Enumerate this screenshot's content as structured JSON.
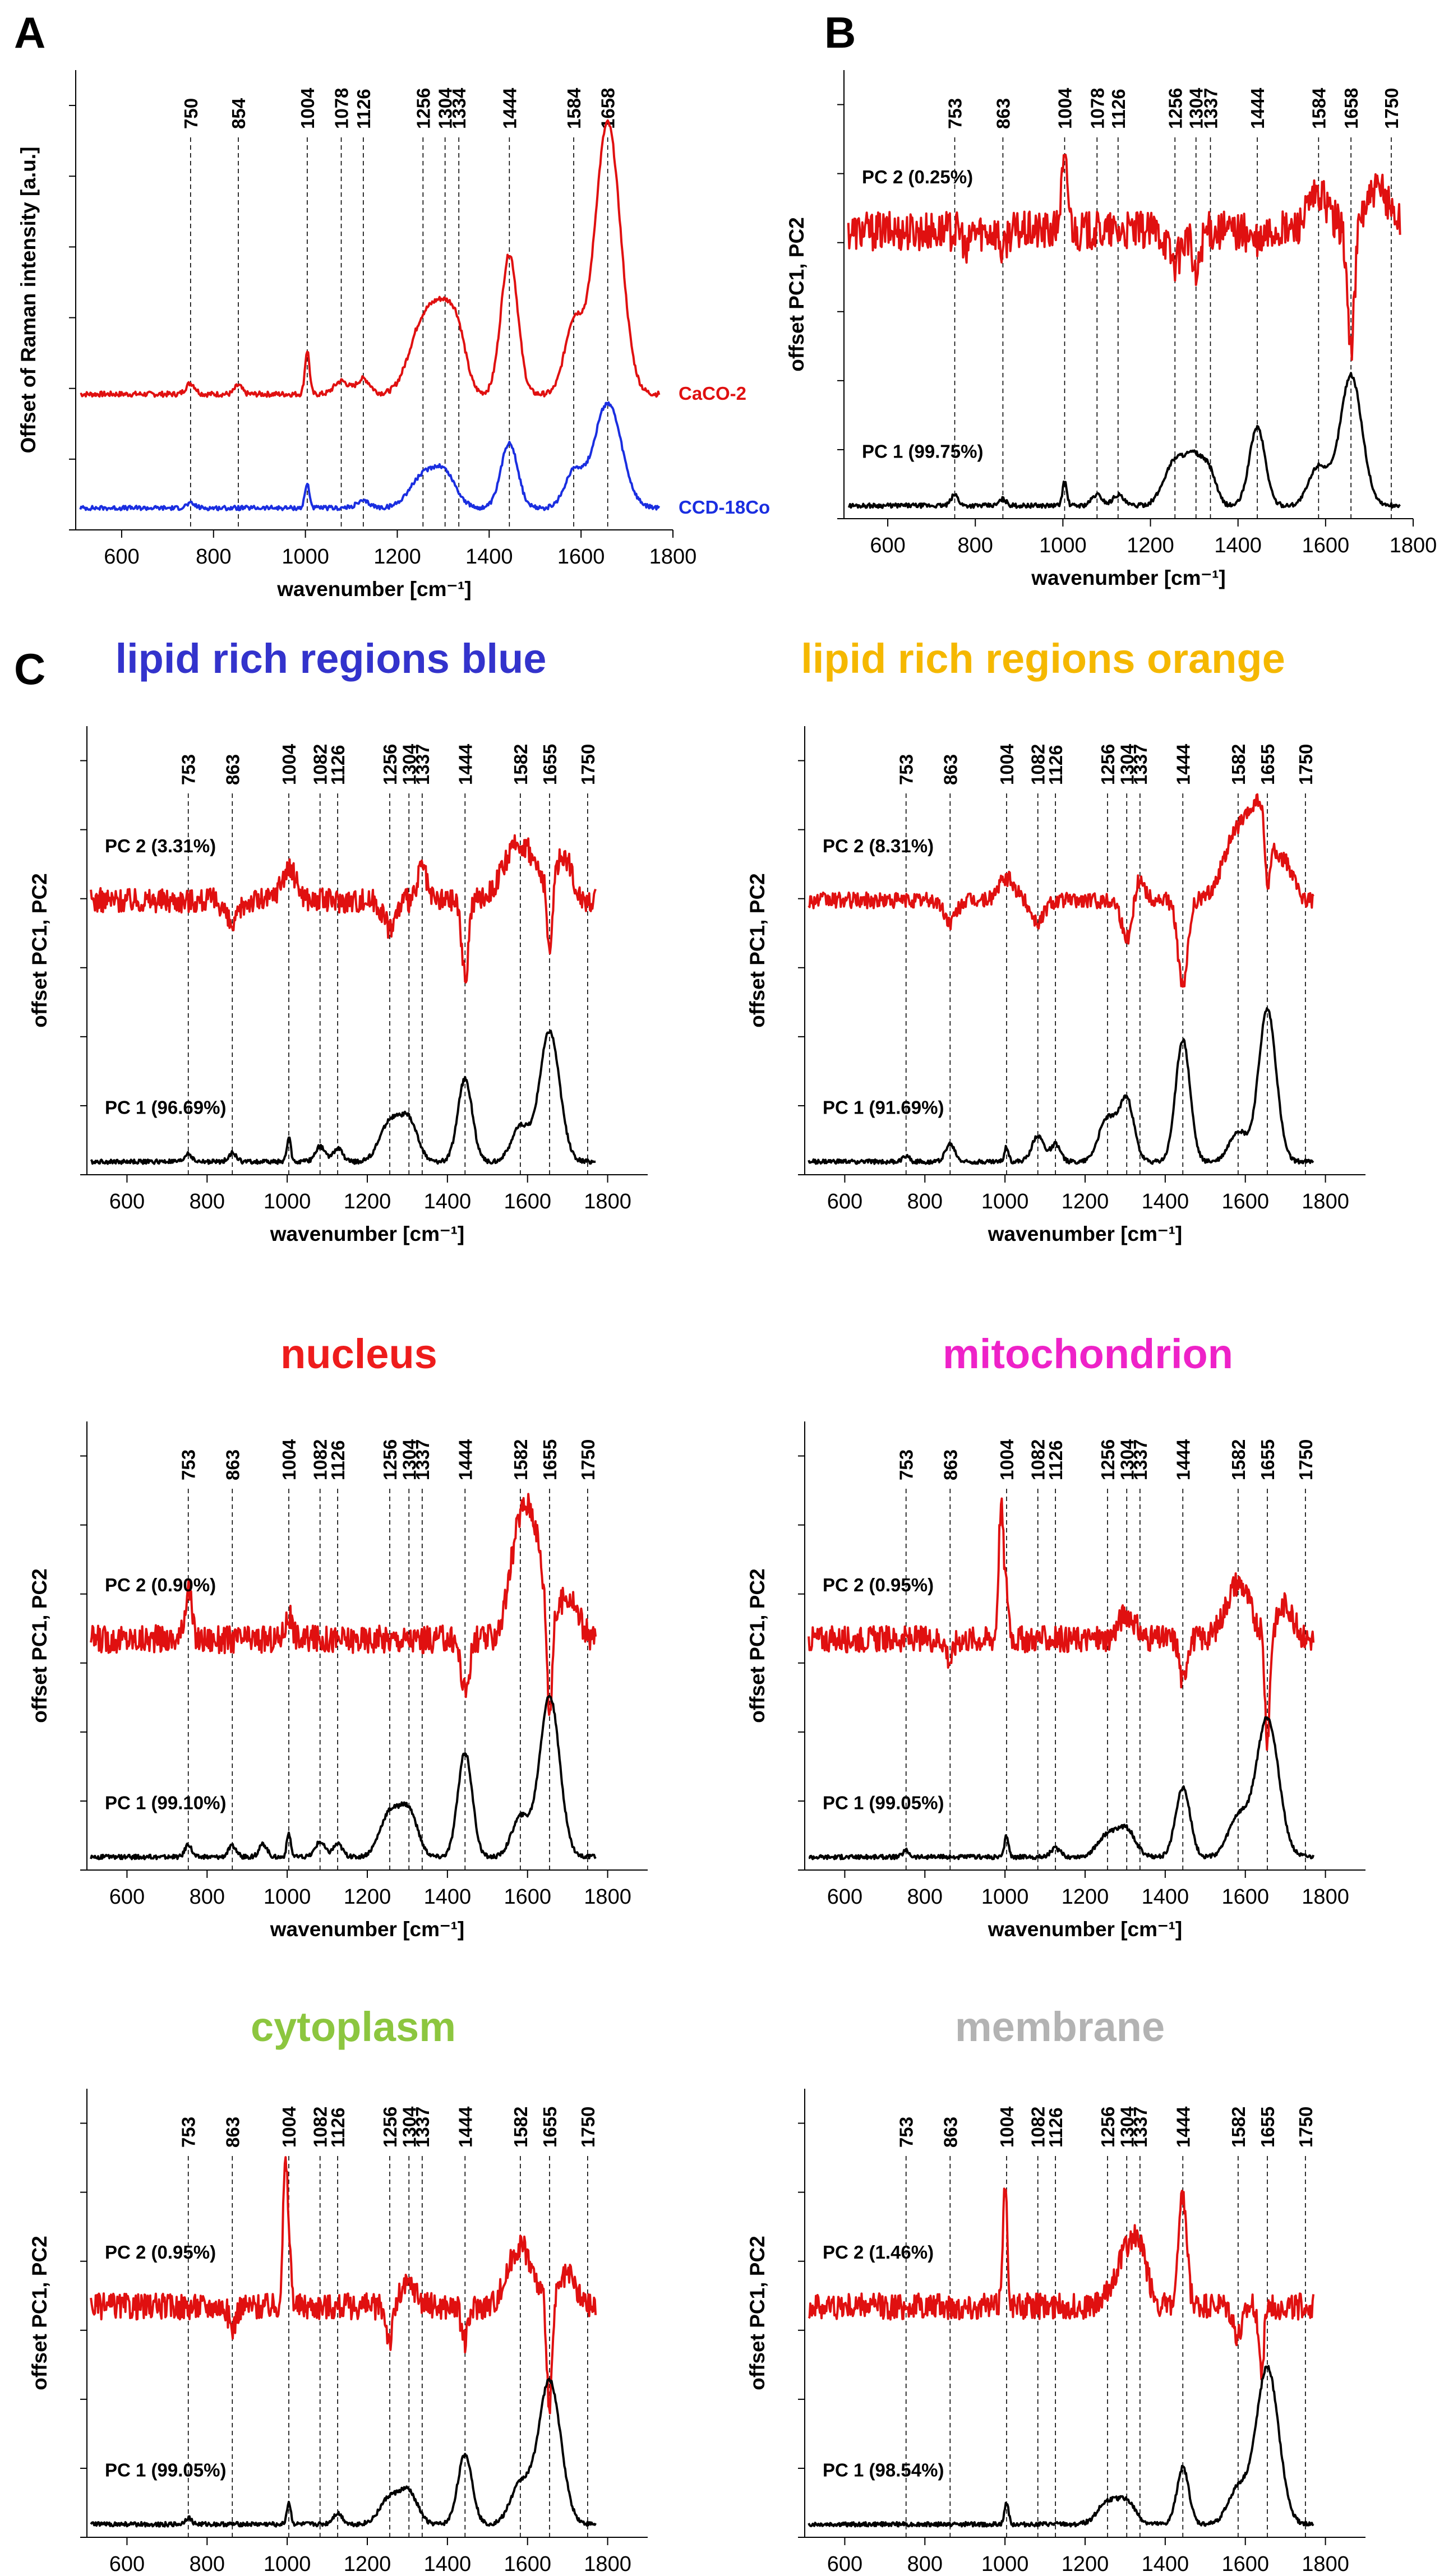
{
  "chart_data": [
    {
      "type": "line",
      "panel": "A",
      "title": "",
      "xlabel": "wavenumber [cm⁻¹]",
      "ylabel": "Offset of Raman intensity [a.u.]",
      "xlim": [
        500,
        1800
      ],
      "ylim": [
        -0.5,
        10
      ],
      "xticks": [
        600,
        800,
        1000,
        1200,
        1400,
        1600,
        1800
      ],
      "peak_lines": [
        "750",
        "854",
        "1004",
        "1078",
        "1126",
        "1256",
        "1304",
        "1334",
        "1444",
        "1584",
        "1658"
      ],
      "series": [
        {
          "name": "CaCO-2",
          "color": "#e01010",
          "offset": 2.6,
          "noise": 0.06,
          "peaks": [
            [
              750,
              0.25,
              10
            ],
            [
              854,
              0.2,
              8
            ],
            [
              1004,
              1.0,
              5
            ],
            [
              1078,
              0.3,
              15
            ],
            [
              1126,
              0.35,
              15
            ],
            [
              1256,
              1.6,
              30
            ],
            [
              1304,
              1.5,
              25
            ],
            [
              1334,
              0.9,
              18
            ],
            [
              1444,
              3.2,
              18
            ],
            [
              1584,
              1.6,
              20
            ],
            [
              1658,
              6.2,
              28
            ]
          ]
        },
        {
          "name": "CCD-18Co",
          "color": "#1a2ee0",
          "offset": 0,
          "noise": 0.05,
          "peaks": [
            [
              750,
              0.1,
              10
            ],
            [
              1004,
              0.55,
              5
            ],
            [
              1126,
              0.15,
              15
            ],
            [
              1256,
              0.7,
              30
            ],
            [
              1304,
              0.7,
              25
            ],
            [
              1444,
              1.5,
              18
            ],
            [
              1584,
              0.8,
              20
            ],
            [
              1658,
              2.4,
              30
            ]
          ]
        }
      ]
    },
    {
      "type": "line",
      "panel": "B",
      "title": "",
      "xlabel": "wavenumber [cm⁻¹]",
      "ylabel": "offset PC1, PC2",
      "xlim": [
        500,
        1800
      ],
      "ylim": [
        -0.3,
        10
      ],
      "xticks": [
        600,
        800,
        1000,
        1200,
        1400,
        1600,
        1800
      ],
      "peak_lines": [
        "753",
        "863",
        "1004",
        "1078",
        "1126",
        "1256",
        "1304",
        "1337",
        "1444",
        "1584",
        "1658",
        "1750"
      ],
      "series": [
        {
          "name": "PC 2 (0.25%)",
          "color": "#e01010",
          "offset": 6.3,
          "noise": 0.45,
          "peaks": [
            [
              1004,
              1.5,
              8
            ],
            [
              1256,
              -0.7,
              14
            ],
            [
              1304,
              -1.1,
              8
            ],
            [
              1444,
              -0.3,
              15
            ],
            [
              1584,
              0.8,
              25
            ],
            [
              1658,
              -2.8,
              8
            ],
            [
              1720,
              0.9,
              30
            ],
            [
              863,
              -0.5,
              6
            ],
            [
              780,
              -0.6,
              5
            ]
          ]
        },
        {
          "name": "PC 1 (99.75%)",
          "color": "#000000",
          "offset": 0,
          "noise": 0.05,
          "peaks": [
            [
              753,
              0.25,
              8
            ],
            [
              863,
              0.15,
              8
            ],
            [
              1004,
              0.55,
              5
            ],
            [
              1078,
              0.25,
              12
            ],
            [
              1126,
              0.25,
              12
            ],
            [
              1256,
              1.0,
              25
            ],
            [
              1304,
              1.0,
              22
            ],
            [
              1337,
              0.55,
              15
            ],
            [
              1444,
              1.8,
              18
            ],
            [
              1584,
              0.9,
              22
            ],
            [
              1658,
              3.0,
              25
            ]
          ]
        }
      ]
    },
    {
      "type": "line",
      "panel": "C",
      "title": "lipid rich regions blue",
      "title_color": "#3333cc",
      "xlabel": "wavenumber [cm⁻¹]",
      "ylabel": "offset PC1, PC2",
      "xlim": [
        500,
        1900
      ],
      "ylim": [
        -0.3,
        10
      ],
      "xticks": [
        600,
        800,
        1000,
        1200,
        1400,
        1600,
        1800
      ],
      "peak_lines": [
        "753",
        "863",
        "1004",
        "1082",
        "1126",
        "1256",
        "1304",
        "1337",
        "1444",
        "1582",
        "1655",
        "1750"
      ],
      "series": [
        {
          "name": "PC 2 (3.31%)",
          "color": "#e01010",
          "offset": 6.0,
          "noise": 0.28,
          "peaks": [
            [
              1004,
              0.7,
              20
            ],
            [
              863,
              -0.6,
              15
            ],
            [
              1256,
              -0.6,
              15
            ],
            [
              1337,
              0.8,
              10
            ],
            [
              1444,
              -1.8,
              8
            ],
            [
              1582,
              1.3,
              40
            ],
            [
              1655,
              -1.8,
              6
            ],
            [
              1690,
              1.0,
              20
            ]
          ]
        },
        {
          "name": "PC 1 (96.69%)",
          "color": "#000000",
          "offset": 0,
          "noise": 0.05,
          "peaks": [
            [
              753,
              0.2,
              8
            ],
            [
              863,
              0.2,
              10
            ],
            [
              1004,
              0.55,
              5
            ],
            [
              1082,
              0.35,
              12
            ],
            [
              1126,
              0.3,
              12
            ],
            [
              1256,
              0.9,
              25
            ],
            [
              1304,
              0.9,
              22
            ],
            [
              1444,
              1.9,
              18
            ],
            [
              1582,
              0.8,
              22
            ],
            [
              1655,
              3.0,
              25
            ]
          ]
        }
      ]
    },
    {
      "type": "line",
      "panel": "C",
      "title": "lipid rich regions orange",
      "title_color": "#f5b800",
      "xlabel": "wavenumber [cm⁻¹]",
      "ylabel": "offset PC1, PC2",
      "xlim": [
        500,
        1900
      ],
      "ylim": [
        -0.3,
        10
      ],
      "xticks": [
        600,
        800,
        1000,
        1200,
        1400,
        1600,
        1800
      ],
      "peak_lines": [
        "753",
        "863",
        "1004",
        "1082",
        "1126",
        "1256",
        "1304",
        "1337",
        "1444",
        "1582",
        "1655",
        "1750"
      ],
      "series": [
        {
          "name": "PC 2 (8.31%)",
          "color": "#e01010",
          "offset": 6.0,
          "noise": 0.18,
          "peaks": [
            [
              863,
              -0.5,
              15
            ],
            [
              1004,
              0.5,
              20
            ],
            [
              1082,
              -0.5,
              15
            ],
            [
              1304,
              -0.9,
              12
            ],
            [
              1337,
              0.5,
              12
            ],
            [
              1444,
              -2.0,
              12
            ],
            [
              1582,
              1.6,
              35
            ],
            [
              1640,
              1.8,
              25
            ],
            [
              1655,
              -1.5,
              6
            ],
            [
              1700,
              0.8,
              20
            ]
          ]
        },
        {
          "name": "PC 1 (91.69%)",
          "color": "#000000",
          "offset": 0,
          "noise": 0.05,
          "peaks": [
            [
              753,
              0.15,
              8
            ],
            [
              863,
              0.4,
              12
            ],
            [
              1004,
              0.35,
              5
            ],
            [
              1082,
              0.6,
              15
            ],
            [
              1126,
              0.4,
              12
            ],
            [
              1256,
              1.0,
              22
            ],
            [
              1304,
              1.4,
              18
            ],
            [
              1444,
              2.8,
              18
            ],
            [
              1582,
              0.7,
              22
            ],
            [
              1655,
              3.5,
              22
            ]
          ]
        }
      ]
    },
    {
      "type": "line",
      "panel": "C",
      "title": "nucleus",
      "title_color": "#ee1c1c",
      "xlabel": "wavenumber [cm⁻¹]",
      "ylabel": "offset PC1, PC2",
      "xlim": [
        500,
        1900
      ],
      "ylim": [
        -0.3,
        10
      ],
      "xticks": [
        600,
        800,
        1000,
        1200,
        1400,
        1600,
        1800
      ],
      "peak_lines": [
        "753",
        "863",
        "1004",
        "1082",
        "1126",
        "1256",
        "1304",
        "1337",
        "1444",
        "1582",
        "1655",
        "1750"
      ],
      "series": [
        {
          "name": "PC 2 (0.90%)",
          "color": "#e01010",
          "offset": 5.0,
          "noise": 0.32,
          "peaks": [
            [
              753,
              1.2,
              8
            ],
            [
              1004,
              0.5,
              10
            ],
            [
              1444,
              -1.2,
              10
            ],
            [
              1582,
              2.6,
              25
            ],
            [
              1620,
              1.8,
              20
            ],
            [
              1655,
              -2.3,
              6
            ],
            [
              1700,
              1.0,
              25
            ]
          ]
        },
        {
          "name": "PC 1 (99.10%)",
          "color": "#000000",
          "offset": 0,
          "noise": 0.05,
          "peaks": [
            [
              753,
              0.3,
              8
            ],
            [
              863,
              0.25,
              10
            ],
            [
              940,
              0.3,
              10
            ],
            [
              1004,
              0.55,
              5
            ],
            [
              1082,
              0.35,
              12
            ],
            [
              1126,
              0.3,
              12
            ],
            [
              1256,
              1.0,
              25
            ],
            [
              1304,
              1.0,
              22
            ],
            [
              1444,
              2.4,
              18
            ],
            [
              1582,
              0.9,
              22
            ],
            [
              1655,
              3.7,
              25
            ]
          ]
        }
      ]
    },
    {
      "type": "line",
      "panel": "C",
      "title": "mitochondrion",
      "title_color": "#ee22c8",
      "xlabel": "wavenumber [cm⁻¹]",
      "ylabel": "offset PC1, PC2",
      "xlim": [
        500,
        1900
      ],
      "ylim": [
        -0.3,
        10
      ],
      "xticks": [
        600,
        800,
        1000,
        1200,
        1400,
        1600,
        1800
      ],
      "peak_lines": [
        "753",
        "863",
        "1004",
        "1082",
        "1126",
        "1256",
        "1304",
        "1337",
        "1444",
        "1582",
        "1655",
        "1750"
      ],
      "series": [
        {
          "name": "PC 2 (0.95%)",
          "color": "#e01010",
          "offset": 5.0,
          "noise": 0.3,
          "peaks": [
            [
              990,
              3.0,
              6
            ],
            [
              1004,
              1.0,
              6
            ],
            [
              863,
              -0.5,
              8
            ],
            [
              1304,
              0.6,
              20
            ],
            [
              1444,
              -1.0,
              8
            ],
            [
              1582,
              1.3,
              30
            ],
            [
              1655,
              -2.4,
              6
            ],
            [
              1700,
              0.8,
              20
            ]
          ]
        },
        {
          "name": "PC 1 (99.05%)",
          "color": "#000000",
          "offset": 0,
          "noise": 0.05,
          "peaks": [
            [
              753,
              0.15,
              8
            ],
            [
              1004,
              0.5,
              5
            ],
            [
              1126,
              0.2,
              12
            ],
            [
              1256,
              0.5,
              25
            ],
            [
              1304,
              0.6,
              22
            ],
            [
              1444,
              1.6,
              18
            ],
            [
              1582,
              0.9,
              25
            ],
            [
              1655,
              3.2,
              28
            ]
          ]
        }
      ]
    },
    {
      "type": "line",
      "panel": "C",
      "title": "cytoplasm",
      "title_color": "#8cc63f",
      "xlabel": "wavenumber [cm⁻¹]",
      "ylabel": "offset PC1, PC2",
      "xlim": [
        500,
        1900
      ],
      "ylim": [
        -0.3,
        10
      ],
      "xticks": [
        600,
        800,
        1000,
        1200,
        1400,
        1600,
        1800
      ],
      "peak_lines": [
        "753",
        "863",
        "1004",
        "1082",
        "1126",
        "1256",
        "1304",
        "1337",
        "1444",
        "1582",
        "1655",
        "1750"
      ],
      "series": [
        {
          "name": "PC 2 (0.95%)",
          "color": "#e01010",
          "offset": 5.0,
          "noise": 0.3,
          "peaks": [
            [
              995,
              3.0,
              6
            ],
            [
              1005,
              1.0,
              6
            ],
            [
              863,
              -0.5,
              8
            ],
            [
              1256,
              -0.8,
              8
            ],
            [
              1304,
              0.5,
              20
            ],
            [
              1444,
              -0.8,
              8
            ],
            [
              1582,
              1.4,
              30
            ],
            [
              1655,
              -2.6,
              6
            ],
            [
              1700,
              0.7,
              20
            ]
          ]
        },
        {
          "name": "PC 1 (99.05%)",
          "color": "#000000",
          "offset": 0,
          "noise": 0.05,
          "peaks": [
            [
              753,
              0.15,
              8
            ],
            [
              1004,
              0.5,
              5
            ],
            [
              1126,
              0.25,
              12
            ],
            [
              1256,
              0.6,
              25
            ],
            [
              1304,
              0.7,
              22
            ],
            [
              1444,
              1.6,
              18
            ],
            [
              1582,
              0.9,
              25
            ],
            [
              1655,
              3.3,
              28
            ]
          ]
        }
      ]
    },
    {
      "type": "line",
      "panel": "C",
      "title": "membrane",
      "title_color": "#b3b3b3",
      "xlabel": "wavenumber [cm⁻¹]",
      "ylabel": "offset PC1, PC2",
      "xlim": [
        500,
        1900
      ],
      "ylim": [
        -0.3,
        10
      ],
      "xticks": [
        600,
        800,
        1000,
        1200,
        1400,
        1600,
        1800
      ],
      "peak_lines": [
        "753",
        "863",
        "1004",
        "1082",
        "1126",
        "1256",
        "1304",
        "1337",
        "1444",
        "1582",
        "1655",
        "1750"
      ],
      "series": [
        {
          "name": "PC 2 (1.46%)",
          "color": "#e01010",
          "offset": 5.0,
          "noise": 0.3,
          "peaks": [
            [
              1000,
              2.7,
              6
            ],
            [
              1304,
              1.2,
              30
            ],
            [
              1337,
              0.8,
              20
            ],
            [
              1444,
              2.5,
              10
            ],
            [
              1582,
              -0.7,
              12
            ],
            [
              1640,
              -1.5,
              6
            ]
          ]
        },
        {
          "name": "PC 1 (98.54%)",
          "color": "#000000",
          "offset": 0,
          "noise": 0.05,
          "peaks": [
            [
              1004,
              0.5,
              5
            ],
            [
              1256,
              0.5,
              25
            ],
            [
              1304,
              0.5,
              22
            ],
            [
              1444,
              1.3,
              15
            ],
            [
              1582,
              0.8,
              25
            ],
            [
              1655,
              3.6,
              28
            ]
          ]
        }
      ]
    }
  ]
}
